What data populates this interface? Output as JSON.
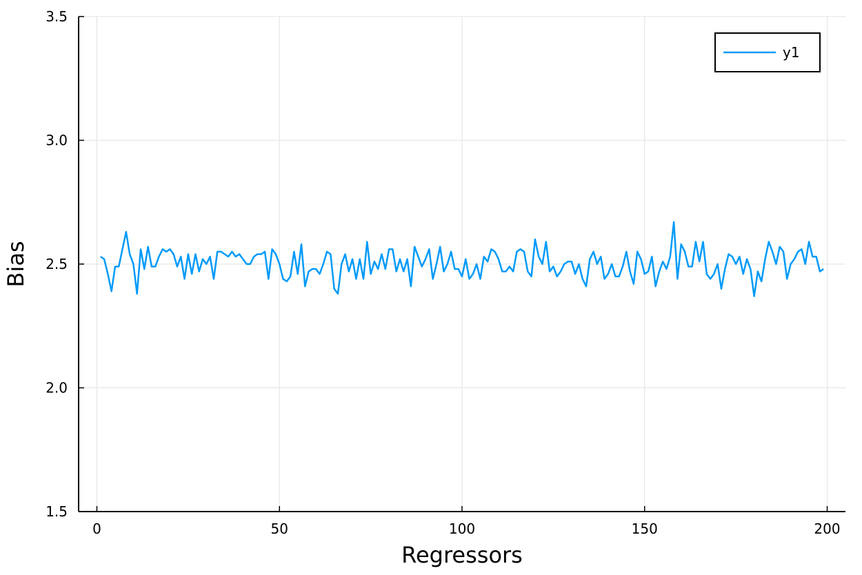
{
  "chart_data": {
    "type": "line",
    "xlabel": "Regressors",
    "ylabel": "Bias",
    "xlim": [
      -5,
      205
    ],
    "ylim": [
      1.5,
      3.5
    ],
    "xticks": [
      0,
      50,
      100,
      150,
      200
    ],
    "yticks": [
      1.5,
      2.0,
      2.5,
      3.0,
      3.5
    ],
    "xtick_labels": [
      "0",
      "50",
      "100",
      "150",
      "200"
    ],
    "ytick_labels": [
      "1.5",
      "2.0",
      "2.5",
      "3.0",
      "3.5"
    ],
    "grid": true,
    "legend_position": "top-right",
    "series": [
      {
        "name": "y1",
        "color": "#009af9",
        "x": [
          1,
          2,
          3,
          4,
          5,
          6,
          7,
          8,
          9,
          10,
          11,
          12,
          13,
          14,
          15,
          16,
          17,
          18,
          19,
          20,
          21,
          22,
          23,
          24,
          25,
          26,
          27,
          28,
          29,
          30,
          31,
          32,
          33,
          34,
          35,
          36,
          37,
          38,
          39,
          40,
          41,
          42,
          43,
          44,
          45,
          46,
          47,
          48,
          49,
          50,
          51,
          52,
          53,
          54,
          55,
          56,
          57,
          58,
          59,
          60,
          61,
          62,
          63,
          64,
          65,
          66,
          67,
          68,
          69,
          70,
          71,
          72,
          73,
          74,
          75,
          76,
          77,
          78,
          79,
          80,
          81,
          82,
          83,
          84,
          85,
          86,
          87,
          88,
          89,
          90,
          91,
          92,
          93,
          94,
          95,
          96,
          97,
          98,
          99,
          100,
          101,
          102,
          103,
          104,
          105,
          106,
          107,
          108,
          109,
          110,
          111,
          112,
          113,
          114,
          115,
          116,
          117,
          118,
          119,
          120,
          121,
          122,
          123,
          124,
          125,
          126,
          127,
          128,
          129,
          130,
          131,
          132,
          133,
          134,
          135,
          136,
          137,
          138,
          139,
          140,
          141,
          142,
          143,
          144,
          145,
          146,
          147,
          148,
          149,
          150,
          151,
          152,
          153,
          154,
          155,
          156,
          157,
          158,
          159,
          160,
          161,
          162,
          163,
          164,
          165,
          166,
          167,
          168,
          169,
          170,
          171,
          172,
          173,
          174,
          175,
          176,
          177,
          178,
          179,
          180,
          181,
          182,
          183,
          184,
          185,
          186,
          187,
          188,
          189,
          190,
          191,
          192,
          193,
          194,
          195,
          196,
          197,
          198,
          199
        ],
        "values": [
          2.53,
          2.52,
          2.46,
          2.39,
          2.49,
          2.49,
          2.56,
          2.63,
          2.54,
          2.5,
          2.38,
          2.56,
          2.48,
          2.57,
          2.49,
          2.49,
          2.53,
          2.56,
          2.55,
          2.56,
          2.54,
          2.49,
          2.53,
          2.44,
          2.54,
          2.46,
          2.54,
          2.47,
          2.52,
          2.5,
          2.53,
          2.44,
          2.55,
          2.55,
          2.54,
          2.53,
          2.55,
          2.53,
          2.54,
          2.52,
          2.5,
          2.5,
          2.53,
          2.54,
          2.54,
          2.55,
          2.44,
          2.56,
          2.54,
          2.5,
          2.44,
          2.43,
          2.45,
          2.55,
          2.46,
          2.58,
          2.41,
          2.47,
          2.48,
          2.48,
          2.46,
          2.5,
          2.55,
          2.54,
          2.4,
          2.38,
          2.5,
          2.54,
          2.47,
          2.52,
          2.44,
          2.52,
          2.44,
          2.59,
          2.46,
          2.51,
          2.48,
          2.54,
          2.48,
          2.56,
          2.56,
          2.47,
          2.52,
          2.47,
          2.52,
          2.41,
          2.57,
          2.53,
          2.49,
          2.52,
          2.56,
          2.44,
          2.5,
          2.57,
          2.47,
          2.5,
          2.55,
          2.48,
          2.48,
          2.45,
          2.52,
          2.44,
          2.46,
          2.5,
          2.44,
          2.53,
          2.51,
          2.56,
          2.55,
          2.52,
          2.47,
          2.47,
          2.49,
          2.47,
          2.55,
          2.56,
          2.55,
          2.47,
          2.45,
          2.6,
          2.53,
          2.5,
          2.59,
          2.47,
          2.49,
          2.45,
          2.47,
          2.5,
          2.51,
          2.51,
          2.46,
          2.5,
          2.44,
          2.41,
          2.52,
          2.55,
          2.5,
          2.53,
          2.44,
          2.46,
          2.5,
          2.45,
          2.45,
          2.49,
          2.55,
          2.47,
          2.42,
          2.55,
          2.52,
          2.46,
          2.47,
          2.53,
          2.41,
          2.47,
          2.51,
          2.48,
          2.53,
          2.67,
          2.44,
          2.58,
          2.55,
          2.49,
          2.49,
          2.59,
          2.51,
          2.59,
          2.46,
          2.44,
          2.46,
          2.5,
          2.4,
          2.48,
          2.54,
          2.53,
          2.5,
          2.53,
          2.46,
          2.52,
          2.48,
          2.37,
          2.47,
          2.43,
          2.52,
          2.59,
          2.55,
          2.5,
          2.57,
          2.55,
          2.44,
          2.5,
          2.52,
          2.55,
          2.56,
          2.5,
          2.59,
          2.53,
          2.53,
          2.47,
          2.48
        ]
      }
    ]
  }
}
